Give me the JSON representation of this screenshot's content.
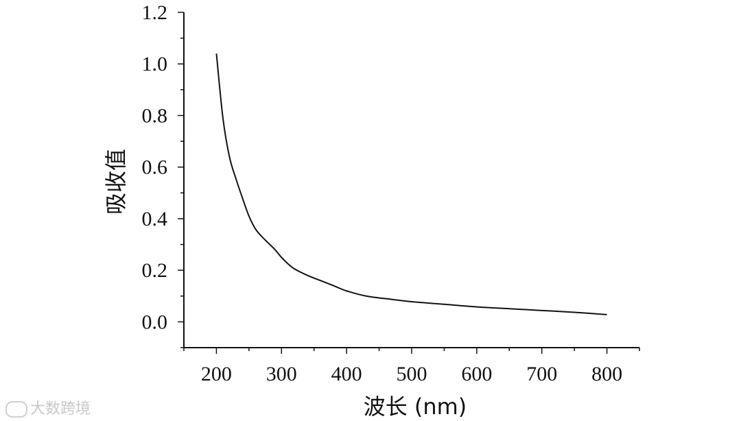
{
  "chart_data": {
    "type": "line",
    "title": "",
    "xlabel": "波长 (nm)",
    "ylabel": "吸收值",
    "xlim": [
      150,
      850
    ],
    "ylim": [
      -0.1,
      1.2
    ],
    "x_ticks": [
      200,
      300,
      400,
      500,
      600,
      700,
      800
    ],
    "x_tick_labels": [
      "200",
      "300",
      "400",
      "500",
      "600",
      "700",
      "800"
    ],
    "y_ticks": [
      0.0,
      0.2,
      0.4,
      0.6,
      0.8,
      1.0,
      1.2
    ],
    "y_tick_labels": [
      "0.0",
      "0.2",
      "0.4",
      "0.6",
      "0.8",
      "1.0",
      "1.2"
    ],
    "grid": false,
    "series": [
      {
        "x": [
          200,
          210,
          220,
          230,
          240,
          250,
          260,
          270,
          280,
          290,
          300,
          310,
          320,
          340,
          360,
          380,
          400,
          430,
          460,
          500,
          550,
          600,
          650,
          700,
          750,
          800
        ],
        "y": [
          1.04,
          0.79,
          0.64,
          0.555,
          0.48,
          0.41,
          0.36,
          0.33,
          0.305,
          0.28,
          0.25,
          0.225,
          0.205,
          0.18,
          0.16,
          0.14,
          0.12,
          0.1,
          0.09,
          0.078,
          0.068,
          0.058,
          0.051,
          0.044,
          0.037,
          0.028
        ]
      }
    ]
  },
  "watermark": {
    "text": "大数跨境"
  }
}
